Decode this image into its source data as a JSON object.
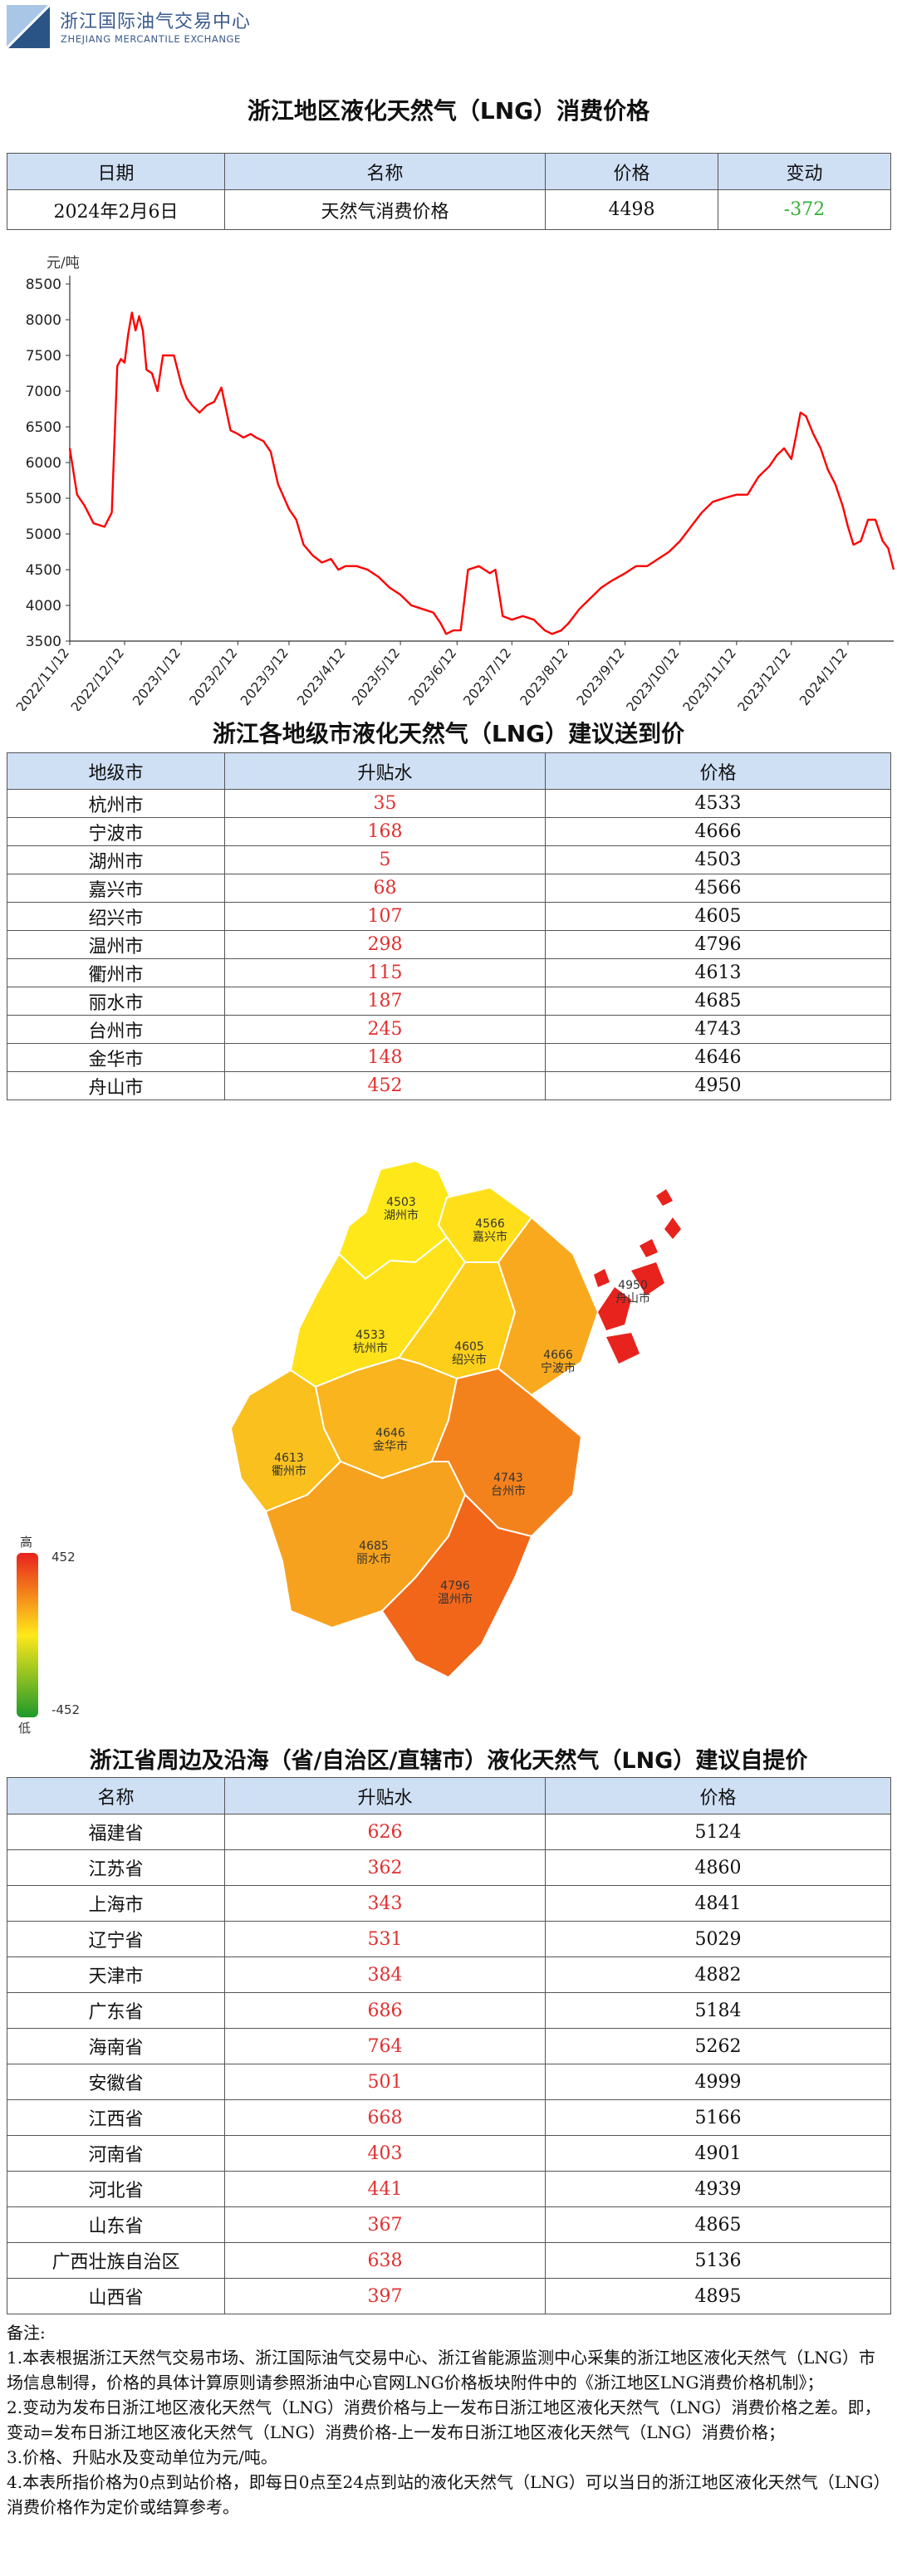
{
  "header": {
    "org_cn": "浙江国际油气交易中心",
    "org_en": "ZHEJIANG MERCANTILE EXCHANGE",
    "colors": {
      "logo_light": "#a9c6e6",
      "logo_dark": "#2b5486"
    }
  },
  "section1": {
    "title": "浙江地区液化天然气（LNG）消费价格",
    "columns": [
      "日期",
      "名称",
      "价格",
      "变动"
    ],
    "row": {
      "date": "2024年2月6日",
      "name": "天然气消费价格",
      "price": "4498",
      "change": "-372"
    }
  },
  "chart_data": {
    "type": "line",
    "ylabel": "元/吨",
    "ylim": [
      3500,
      8500
    ],
    "yticks": [
      3500,
      4000,
      4500,
      5000,
      5500,
      6000,
      6500,
      7000,
      7500,
      8000,
      8500
    ],
    "xticks": [
      "2022/11/12",
      "2022/12/12",
      "2023/1/12",
      "2023/2/12",
      "2023/3/12",
      "2023/4/12",
      "2023/5/12",
      "2023/6/12",
      "2023/7/12",
      "2023/8/12",
      "2023/9/12",
      "2023/10/12",
      "2023/11/12",
      "2023/12/12",
      "2024/1/12"
    ],
    "x_range": [
      "2022/11/12",
      "2024/2/6"
    ],
    "grid": false,
    "line_color": "#ff0000",
    "series": [
      {
        "x": [
          "2022/11/12",
          "2022/11/16",
          "2022/11/20",
          "2022/11/25",
          "2022/12/1",
          "2022/12/5",
          "2022/12/8",
          "2022/12/10",
          "2022/12/12",
          "2022/12/14",
          "2022/12/16",
          "2022/12/18",
          "2022/12/20",
          "2022/12/22",
          "2022/12/24",
          "2022/12/27",
          "2022/12/30",
          "2023/1/2",
          "2023/1/5",
          "2023/1/8",
          "2023/1/12",
          "2023/1/15",
          "2023/1/18",
          "2023/1/22",
          "2023/1/26",
          "2023/1/30",
          "2023/2/3",
          "2023/2/8",
          "2023/2/12",
          "2023/2/15",
          "2023/2/19",
          "2023/2/22",
          "2023/2/26",
          "2023/3/2",
          "2023/3/6",
          "2023/3/12",
          "2023/3/16",
          "2023/3/20",
          "2023/3/25",
          "2023/3/30",
          "2023/4/4",
          "2023/4/8",
          "2023/4/12",
          "2023/4/18",
          "2023/4/24",
          "2023/4/30",
          "2023/5/6",
          "2023/5/12",
          "2023/5/18",
          "2023/5/24",
          "2023/5/30",
          "2023/6/3",
          "2023/6/6",
          "2023/6/10",
          "2023/6/14",
          "2023/6/18",
          "2023/6/24",
          "2023/6/30",
          "2023/7/3",
          "2023/7/7",
          "2023/7/12",
          "2023/7/18",
          "2023/7/24",
          "2023/7/30",
          "2023/8/3",
          "2023/8/8",
          "2023/8/12",
          "2023/8/18",
          "2023/8/24",
          "2023/8/30",
          "2023/9/5",
          "2023/9/12",
          "2023/9/18",
          "2023/9/24",
          "2023/9/30",
          "2023/10/6",
          "2023/10/12",
          "2023/10/18",
          "2023/10/24",
          "2023/10/30",
          "2023/11/5",
          "2023/11/12",
          "2023/11/18",
          "2023/11/24",
          "2023/11/30",
          "2023/12/4",
          "2023/12/8",
          "2023/12/12",
          "2023/12/14",
          "2023/12/17",
          "2023/12/20",
          "2023/12/24",
          "2023/12/28",
          "2024/1/1",
          "2024/1/5",
          "2024/1/9",
          "2024/1/12",
          "2024/1/15",
          "2024/1/19",
          "2024/1/23",
          "2024/1/27",
          "2024/1/31",
          "2024/2/3",
          "2024/2/6"
        ],
        "y": [
          6200,
          5550,
          5400,
          5150,
          5100,
          5300,
          7350,
          7450,
          7400,
          7800,
          8100,
          7850,
          8050,
          7850,
          7300,
          7250,
          7000,
          7500,
          7500,
          7500,
          7100,
          6900,
          6800,
          6700,
          6800,
          6850,
          7050,
          6450,
          6400,
          6350,
          6400,
          6350,
          6300,
          6150,
          5700,
          5350,
          5200,
          4850,
          4700,
          4600,
          4650,
          4500,
          4550,
          4550,
          4500,
          4400,
          4250,
          4150,
          4000,
          3950,
          3900,
          3750,
          3600,
          3650,
          3650,
          4500,
          4550,
          4450,
          4500,
          3850,
          3800,
          3850,
          3800,
          3650,
          3600,
          3650,
          3750,
          3950,
          4100,
          4250,
          4350,
          4450,
          4550,
          4550,
          4650,
          4750,
          4900,
          5100,
          5300,
          5450,
          5500,
          5550,
          5550,
          5800,
          5950,
          6100,
          6200,
          6050,
          6300,
          6700,
          6650,
          6400,
          6200,
          5900,
          5700,
          5400,
          5100,
          4850,
          4900,
          5200,
          5200,
          4900,
          4800,
          4500
        ]
      }
    ]
  },
  "section2": {
    "title": "浙江各地级市液化天然气（LNG）建议送到价",
    "columns": [
      "地级市",
      "升贴水",
      "价格"
    ],
    "rows": [
      {
        "name": "杭州市",
        "diff": "35",
        "price": "4533"
      },
      {
        "name": "宁波市",
        "diff": "168",
        "price": "4666"
      },
      {
        "name": "湖州市",
        "diff": "5",
        "price": "4503"
      },
      {
        "name": "嘉兴市",
        "diff": "68",
        "price": "4566"
      },
      {
        "name": "绍兴市",
        "diff": "107",
        "price": "4605"
      },
      {
        "name": "温州市",
        "diff": "298",
        "price": "4796"
      },
      {
        "name": "衢州市",
        "diff": "115",
        "price": "4613"
      },
      {
        "name": "丽水市",
        "diff": "187",
        "price": "4685"
      },
      {
        "name": "台州市",
        "diff": "245",
        "price": "4743"
      },
      {
        "name": "金华市",
        "diff": "148",
        "price": "4646"
      },
      {
        "name": "舟山市",
        "diff": "452",
        "price": "4950"
      }
    ]
  },
  "map": {
    "legend_high": "高",
    "legend_low": "低",
    "legend_max": "452",
    "legend_min": "-452",
    "regions": [
      {
        "price": "4503",
        "city": "湖州市",
        "color": "#ffe81a"
      },
      {
        "price": "4566",
        "city": "嘉兴市",
        "color": "#ffdf1a"
      },
      {
        "price": "4533",
        "city": "杭州市",
        "color": "#ffe21a"
      },
      {
        "price": "4605",
        "city": "绍兴市",
        "color": "#fdcf1a"
      },
      {
        "price": "4666",
        "city": "宁波市",
        "color": "#f9a91e"
      },
      {
        "price": "4646",
        "city": "金华市",
        "color": "#f9b41e"
      },
      {
        "price": "4613",
        "city": "衢州市",
        "color": "#f9c01e"
      },
      {
        "price": "4743",
        "city": "台州市",
        "color": "#f4821c"
      },
      {
        "price": "4685",
        "city": "丽水市",
        "color": "#f7a21e"
      },
      {
        "price": "4796",
        "city": "温州市",
        "color": "#f2661a"
      },
      {
        "price": "4950",
        "city": "舟山市",
        "color": "#e8221c"
      }
    ]
  },
  "section3": {
    "title": "浙江省周边及沿海（省/自治区/直辖市）液化天然气（LNG）建议自提价",
    "columns": [
      "名称",
      "升贴水",
      "价格"
    ],
    "rows": [
      {
        "name": "福建省",
        "diff": "626",
        "price": "5124"
      },
      {
        "name": "江苏省",
        "diff": "362",
        "price": "4860"
      },
      {
        "name": "上海市",
        "diff": "343",
        "price": "4841"
      },
      {
        "name": "辽宁省",
        "diff": "531",
        "price": "5029"
      },
      {
        "name": "天津市",
        "diff": "384",
        "price": "4882"
      },
      {
        "name": "广东省",
        "diff": "686",
        "price": "5184"
      },
      {
        "name": "海南省",
        "diff": "764",
        "price": "5262"
      },
      {
        "name": "安徽省",
        "diff": "501",
        "price": "4999"
      },
      {
        "name": "江西省",
        "diff": "668",
        "price": "5166"
      },
      {
        "name": "河南省",
        "diff": "403",
        "price": "4901"
      },
      {
        "name": "河北省",
        "diff": "441",
        "price": "4939"
      },
      {
        "name": "山东省",
        "diff": "367",
        "price": "4865"
      },
      {
        "name": "广西壮族自治区",
        "diff": "638",
        "price": "5136"
      },
      {
        "name": "山西省",
        "diff": "397",
        "price": "4895"
      }
    ]
  },
  "notes": {
    "title": "备注:",
    "items": [
      "1.本表根据浙江天然气交易市场、浙江国际油气交易中心、浙江省能源监测中心采集的浙江地区液化天然气（LNG）市场信息制得，价格的具体计算原则请参照浙油中心官网LNG价格板块附件中的《浙江地区LNG消费价格机制》；",
      "2.变动为发布日浙江地区液化天然气（LNG）消费价格与上一发布日浙江地区液化天然气（LNG）消费价格之差。即，变动=发布日浙江地区液化天然气（LNG）消费价格-上一发布日浙江地区液化天然气（LNG）消费价格；",
      "3.价格、升贴水及变动单位为元/吨。",
      "4.本表所指价格为0点到站价格，即每日0点至24点到站的液化天然气（LNG）可以当日的浙江地区液化天然气（LNG）消费价格作为定价或结算参考。"
    ]
  }
}
